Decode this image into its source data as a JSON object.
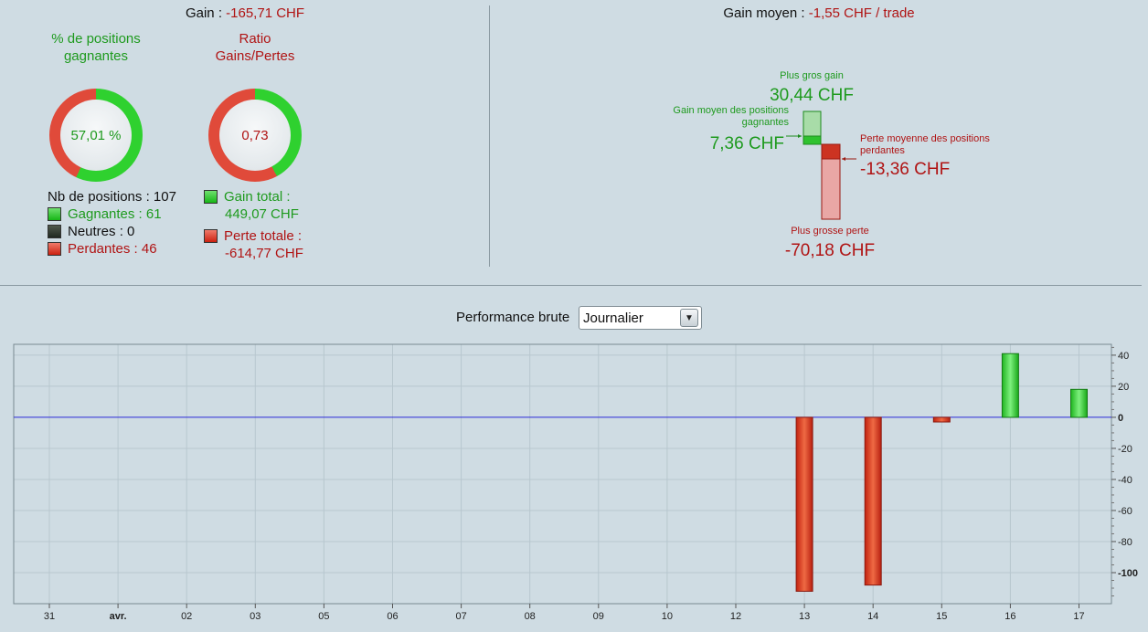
{
  "summary": {
    "gain_label": "Gain : ",
    "gain_value": "-165,71 CHF",
    "win_donut": {
      "title": "% de positions gagnantes",
      "value": "57,01 %",
      "win_fraction": 0.5701
    },
    "ratio_donut": {
      "title": "Ratio Gains/Pertes",
      "value": "0,73",
      "gain_fraction": 0.4221
    },
    "positions_count": "Nb de positions : 107",
    "winners": "Gagnantes : 61",
    "neutrals": "Neutres : 0",
    "losers": "Perdantes : 46",
    "total_gain_line1": "Gain total :",
    "total_gain_line2": "449,07 CHF",
    "total_loss_line1": "Perte totale :",
    "total_loss_line2": "-614,77 CHF"
  },
  "average": {
    "title_label": "Gain moyen : ",
    "title_value": "-1,55 CHF / trade",
    "max_gain_label": "Plus gros gain",
    "max_gain_value": "30,44 CHF",
    "avg_win_label": "Gain moyen des positions gagnantes",
    "avg_win_value": "7,36 CHF",
    "avg_loss_label": "Perte moyenne des positions perdantes",
    "avg_loss_value": "-13,36 CHF",
    "max_loss_label": "Plus grosse perte",
    "max_loss_value": "-70,18 CHF"
  },
  "performance": {
    "label": "Performance brute",
    "period_selected": "Journalier"
  },
  "colors": {
    "gain": "#1e9a1e",
    "loss": "#b01414",
    "zero_line": "#2a2ad8",
    "plot_bg": "#cfdce3"
  },
  "chart_data": {
    "type": "bar",
    "categories": [
      "31",
      "avr.",
      "02",
      "03",
      "05",
      "06",
      "07",
      "08",
      "09",
      "10",
      "12",
      "13",
      "14",
      "15",
      "16",
      "17"
    ],
    "values": [
      0,
      0,
      0,
      0,
      0,
      0,
      0,
      0,
      0,
      0,
      0,
      -112,
      -108,
      -3,
      41,
      18
    ],
    "ylim": [
      -120,
      47
    ],
    "yticks": [
      40,
      20,
      0,
      -20,
      -40,
      -60,
      -80,
      -100
    ],
    "ytick_labels": [
      "40",
      "20",
      "0",
      "-20",
      "-40",
      "-60",
      "-80",
      "-100"
    ],
    "grid": true,
    "xlabel": "",
    "ylabel": ""
  }
}
